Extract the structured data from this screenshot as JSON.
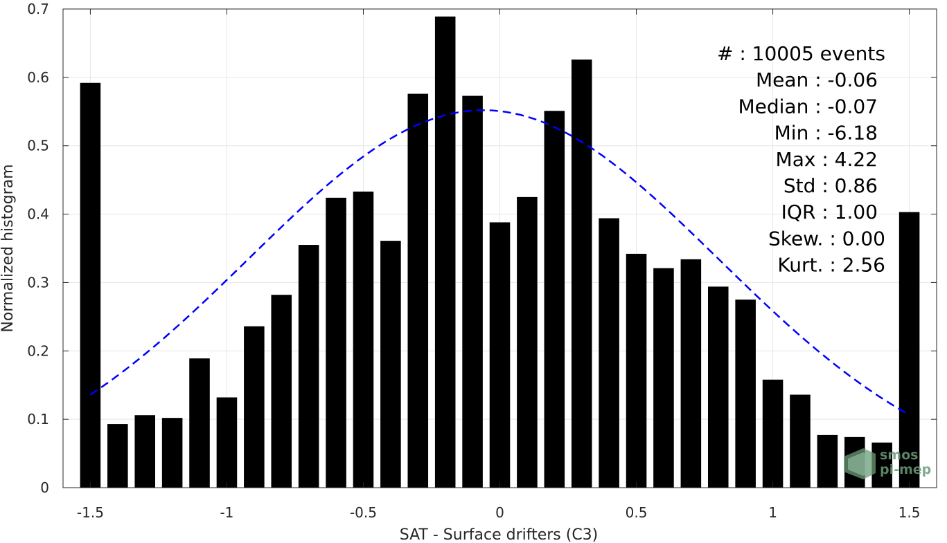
{
  "chart_data": {
    "type": "bar",
    "xlabel": "SAT - Surface drifters (C3)",
    "ylabel": "Normalized histogram",
    "xlim": [
      -1.6,
      1.6
    ],
    "ylim": [
      0,
      0.7
    ],
    "xticks": [
      -1.5,
      -1,
      -0.5,
      0,
      0.5,
      1,
      1.5
    ],
    "xtick_labels": [
      "-1.5",
      "-1",
      "-0.5",
      "0",
      "0.5",
      "1",
      "1.5"
    ],
    "yticks": [
      0,
      0.1,
      0.2,
      0.3,
      0.4,
      0.5,
      0.6,
      0.7
    ],
    "ytick_labels": [
      "0",
      "0.1",
      "0.2",
      "0.3",
      "0.4",
      "0.5",
      "0.6",
      "0.7"
    ],
    "grid": true,
    "bar_color": "#000000",
    "bar_width": 0.075,
    "x": [
      -1.5,
      -1.4,
      -1.3,
      -1.2,
      -1.1,
      -1.0,
      -0.9,
      -0.8,
      -0.7,
      -0.6,
      -0.5,
      -0.4,
      -0.3,
      -0.2,
      -0.1,
      0.0,
      0.1,
      0.2,
      0.3,
      0.4,
      0.5,
      0.6,
      0.7,
      0.8,
      0.9,
      1.0,
      1.1,
      1.2,
      1.3,
      1.4,
      1.5
    ],
    "values": [
      0.592,
      0.093,
      0.106,
      0.102,
      0.189,
      0.132,
      0.236,
      0.282,
      0.355,
      0.424,
      0.433,
      0.361,
      0.576,
      0.689,
      0.573,
      0.388,
      0.425,
      0.551,
      0.626,
      0.394,
      0.342,
      0.321,
      0.334,
      0.294,
      0.275,
      0.158,
      0.136,
      0.077,
      0.074,
      0.066,
      0.403
    ],
    "fit_curve": {
      "type": "normal",
      "mean": -0.06,
      "std": 0.86,
      "scale": 0.552,
      "x_range": [
        -1.5,
        1.5
      ],
      "color": "#0000ff",
      "style": "dashed"
    },
    "stats": [
      {
        "label": "#  : 10005 events"
      },
      {
        "label": "Mean : -0.06"
      },
      {
        "label": "Median : -0.07"
      },
      {
        "label": "Min : -6.18"
      },
      {
        "label": "Max : 4.22"
      },
      {
        "label": "Std : 0.86"
      },
      {
        "label": "IQR : 1.00"
      },
      {
        "label": "Skew. : 0.00"
      },
      {
        "label": "Kurt. : 2.56"
      }
    ]
  },
  "logo": {
    "line1": "smos",
    "line2": "pi-mep"
  }
}
